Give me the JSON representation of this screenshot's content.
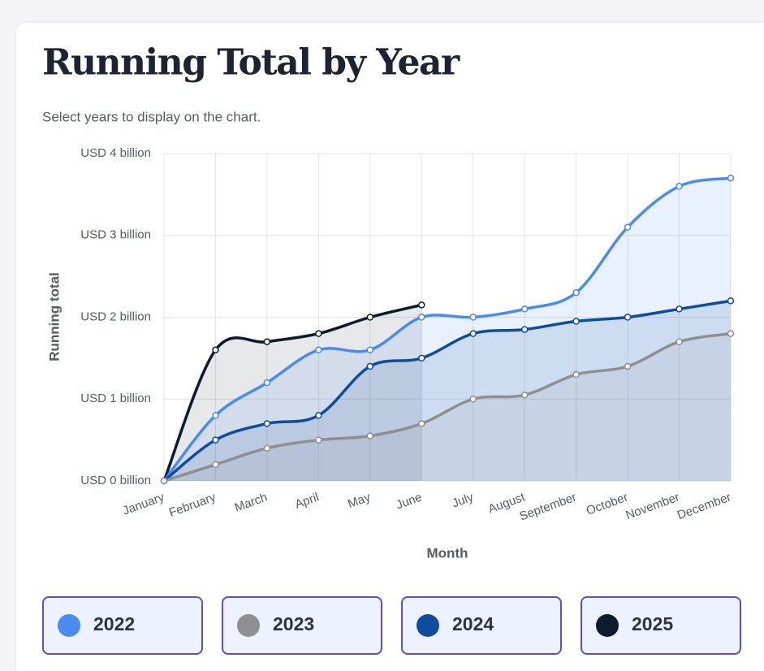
{
  "chart_data": {
    "type": "line",
    "title": "Running Total by Year",
    "subtitle": "Select years to display on the chart.",
    "x_label": "Month",
    "y_label": "Running total",
    "categories": [
      "January",
      "February",
      "March",
      "April",
      "May",
      "June",
      "July",
      "August",
      "September",
      "October",
      "November",
      "December"
    ],
    "series": [
      {
        "name": "2022",
        "color": "#4a8af4",
        "values": [
          0,
          0.8,
          1.2,
          1.6,
          1.6,
          2.0,
          2.0,
          2.1,
          2.3,
          3.1,
          3.6,
          3.7
        ]
      },
      {
        "name": "2023",
        "color": "#8e8e93",
        "values": [
          0,
          0.2,
          0.4,
          0.5,
          0.55,
          0.7,
          1.0,
          1.05,
          1.3,
          1.4,
          1.7,
          1.8
        ]
      },
      {
        "name": "2024",
        "color": "#0f4c9e",
        "values": [
          0,
          0.5,
          0.7,
          0.8,
          1.4,
          1.5,
          1.8,
          1.85,
          1.95,
          2.0,
          2.1,
          2.2
        ]
      },
      {
        "name": "2025",
        "color": "#0b1c2e",
        "values": [
          0,
          1.6,
          1.7,
          1.8,
          2.0,
          2.15,
          null,
          null,
          null,
          null,
          null,
          null
        ]
      }
    ],
    "ylim": [
      0,
      4
    ],
    "yticks": [
      {
        "value": 0,
        "label": "USD 0 billion"
      },
      {
        "value": 1,
        "label": "USD 1 billion"
      },
      {
        "value": 2,
        "label": "USD 2 billion"
      },
      {
        "value": 3,
        "label": "USD 3 billion"
      },
      {
        "value": 4,
        "label": "USD 4 billion"
      }
    ],
    "grid": true,
    "area": true
  }
}
